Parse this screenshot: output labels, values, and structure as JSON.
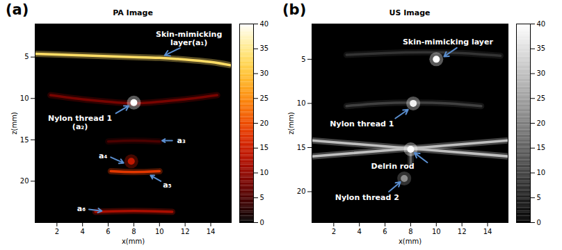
{
  "chart_data": [
    {
      "type": "heatmap",
      "panel_label": "(a)",
      "title": "PA Image",
      "x_label": "x(mm)",
      "y_label": "z(mm)",
      "xlim": [
        0.3,
        15.6
      ],
      "xticks": [
        2,
        4,
        6,
        8,
        10,
        12,
        14
      ],
      "ylim": [
        1,
        25
      ],
      "yticks": [
        5,
        10,
        15,
        20
      ],
      "color": "hot",
      "colorbar": {
        "range": [
          0,
          40
        ],
        "ticks": [
          0,
          5,
          10,
          15,
          20,
          25,
          30,
          35,
          40
        ]
      },
      "curves": [
        {
          "points": [
            [
              0.3,
              4.6
            ],
            [
              2,
              4.7
            ],
            [
              4,
              4.8
            ],
            [
              6,
              4.9
            ],
            [
              8,
              5.0
            ],
            [
              10,
              5.1
            ],
            [
              12,
              5.3
            ],
            [
              14,
              5.6
            ],
            [
              15.6,
              6.0
            ]
          ],
          "intensity": 33
        },
        {
          "points": [
            [
              1.5,
              9.6
            ],
            [
              4,
              10.1
            ],
            [
              6,
              10.4
            ],
            [
              8,
              10.6
            ],
            [
              10,
              10.4
            ],
            [
              12,
              10.1
            ],
            [
              14.5,
              9.6
            ]
          ],
          "intensity": 8
        },
        {
          "points": [
            [
              6,
              15.2
            ],
            [
              8,
              15.1
            ],
            [
              10,
              15.2
            ]
          ],
          "intensity": 5
        },
        {
          "points": [
            [
              6.2,
              18.8
            ],
            [
              8,
              18.9
            ],
            [
              10,
              18.8
            ]
          ],
          "intensity": 18
        },
        {
          "points": [
            [
              5,
              23.7
            ],
            [
              8,
              23.6
            ],
            [
              11,
              23.7
            ]
          ],
          "intensity": 12
        }
      ],
      "spots": [
        {
          "x": 8,
          "z": 10.5,
          "intensity": 40
        },
        {
          "x": 7.8,
          "z": 17.6,
          "intensity": 14
        }
      ],
      "annotations": [
        {
          "text": "Skin-mimicking\nlayer(a₁)",
          "x": 12.3,
          "z": 2.7,
          "arrow": [
            11.6,
            3.9,
            10.4,
            4.8
          ]
        },
        {
          "text": "Nylon thread 1\n(a₂)",
          "x": 3.8,
          "z": 12.9,
          "arrow": [
            6.6,
            11.8,
            7.6,
            10.9
          ]
        },
        {
          "text": "a₃",
          "x": 11.7,
          "z": 15.1,
          "arrow": [
            11.0,
            15.1,
            10.2,
            15.1
          ]
        },
        {
          "text": "a₄",
          "x": 5.6,
          "z": 16.9,
          "arrow": [
            6.2,
            17.1,
            7.2,
            17.8
          ]
        },
        {
          "text": "a₅",
          "x": 10.6,
          "z": 20.4,
          "arrow": [
            10.1,
            20.0,
            9.3,
            19.3
          ]
        },
        {
          "text": "a₆",
          "x": 3.9,
          "z": 23.3,
          "arrow": [
            4.5,
            23.4,
            5.5,
            23.6
          ]
        }
      ]
    },
    {
      "type": "heatmap",
      "panel_label": "(b)",
      "title": "US Image",
      "x_label": "x(mm)",
      "y_label": "z(mm)",
      "xlim": [
        0.3,
        15.6
      ],
      "xticks": [
        2,
        4,
        6,
        8,
        10,
        12,
        14
      ],
      "ylim": [
        1,
        23.5
      ],
      "yticks": [
        5,
        10,
        15,
        20
      ],
      "color": "gray",
      "colorbar": {
        "range": [
          0,
          40
        ],
        "ticks": [
          0,
          5,
          10,
          15,
          20,
          25,
          30,
          35,
          40
        ]
      },
      "curves": [
        {
          "points": [
            [
              3,
              4.5
            ],
            [
              6,
              4.3
            ],
            [
              9,
              4.2
            ],
            [
              12,
              4.3
            ],
            [
              15,
              4.6
            ]
          ],
          "intensity": 8
        },
        {
          "points": [
            [
              3,
              10.3
            ],
            [
              5.5,
              10.0
            ],
            [
              8.2,
              9.9
            ],
            [
              11,
              10.0
            ],
            [
              13.5,
              10.3
            ]
          ],
          "intensity": 10
        },
        {
          "points": [
            [
              0.3,
              14.2
            ],
            [
              8,
              15.1
            ],
            [
              15.6,
              16.0
            ]
          ],
          "intensity": 30
        },
        {
          "points": [
            [
              0.3,
              16.0
            ],
            [
              8,
              15.1
            ],
            [
              15.6,
              14.2
            ]
          ],
          "intensity": 30
        },
        {
          "points": [
            [
              8,
              15.3
            ],
            [
              8,
              16.8
            ]
          ],
          "intensity": 15
        }
      ],
      "spots": [
        {
          "x": 10,
          "z": 5.0,
          "intensity": 40
        },
        {
          "x": 8.2,
          "z": 10.0,
          "intensity": 38
        },
        {
          "x": 8.0,
          "z": 15.2,
          "intensity": 40
        },
        {
          "x": 7.5,
          "z": 18.5,
          "intensity": 22
        }
      ],
      "annotations": [
        {
          "text": "Skin-mimicking layer",
          "x": 10.9,
          "z": 3.0,
          "arrow": [
            11.6,
            3.7,
            10.6,
            4.7
          ]
        },
        {
          "text": "Nylon thread 1",
          "x": 4.2,
          "z": 12.3,
          "arrow": [
            6.8,
            11.7,
            7.8,
            10.7
          ]
        },
        {
          "text": "Delrin rod",
          "x": 6.6,
          "z": 17.1,
          "arrow": [
            9.3,
            16.7,
            8.3,
            15.6
          ]
        },
        {
          "text": "Nylon thread 2",
          "x": 4.6,
          "z": 20.6,
          "arrow": [
            6.3,
            20.0,
            7.2,
            18.9
          ]
        }
      ]
    }
  ]
}
